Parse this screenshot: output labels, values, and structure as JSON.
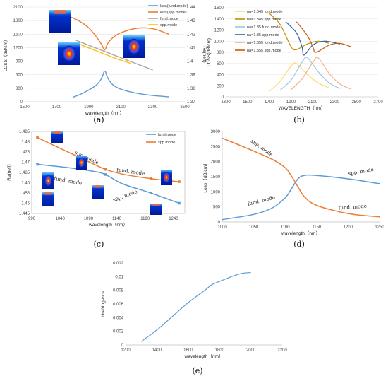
{
  "chart_data": [
    {
      "id": "a",
      "type": "line",
      "panel_label": "(a)",
      "xlabel": "wavelength（nm）",
      "ylabel": "LOSS（dB/cm）",
      "y2label": "Re(neff)",
      "xlim": [
        1500,
        2500
      ],
      "ylim": [
        0,
        2100
      ],
      "y2lim": [
        1.37,
        1.44
      ],
      "xticks": [
        "1500",
        "1700",
        "1900",
        "2100",
        "2300",
        "2500"
      ],
      "yticks": [
        "0",
        "300",
        "600",
        "900",
        "1200",
        "1500",
        "1800",
        "2100"
      ],
      "y2ticks": [
        "1.37",
        "1.38",
        "1.39",
        "1.4",
        "1.41",
        "1.42",
        "1.43",
        "1.44"
      ],
      "legend_position": "top-right",
      "colors": {
        "loss_fund": "#5b9bd5",
        "loss_spp": "#ed7d31",
        "re_fund": "#a5a5a5",
        "re_spp": "#ffc000"
      },
      "series": [
        {
          "name": "loss(fund.mode)",
          "axis": "left",
          "color": "#5b9bd5",
          "x": [
            1800,
            1850,
            1900,
            1950,
            1980,
            2000,
            2020,
            2050,
            2100,
            2200,
            2300,
            2400
          ],
          "y": [
            100,
            170,
            260,
            380,
            520,
            680,
            520,
            380,
            280,
            190,
            140,
            110
          ]
        },
        {
          "name": "loss(spp.mode)",
          "axis": "left",
          "color": "#ed7d31",
          "x": [
            1700,
            1750,
            1800,
            1850,
            1900,
            1950,
            1980,
            2000,
            2020,
            2050,
            2100,
            2200,
            2300,
            2400
          ],
          "y": [
            1960,
            1920,
            1860,
            1770,
            1640,
            1430,
            1270,
            1150,
            1300,
            1420,
            1530,
            1630,
            1620,
            1500
          ]
        },
        {
          "name": "fund.mode",
          "axis": "right",
          "color": "#a5a5a5",
          "x": [
            1820,
            1900,
            2000,
            2100,
            2200,
            2300
          ],
          "y": [
            1.4155,
            1.4118,
            1.4072,
            1.4026,
            1.398,
            1.3935
          ]
        },
        {
          "name": "spp.mode",
          "axis": "right",
          "color": "#ffc000",
          "x": [
            1820,
            1900,
            2000,
            2080,
            2160
          ],
          "y": [
            1.4135,
            1.4098,
            1.4052,
            1.4015,
            1.3985
          ]
        }
      ]
    },
    {
      "id": "b",
      "type": "line",
      "panel_label": "(b)",
      "xlabel": "WAVELENGTH（nm）",
      "ylabel": "LOSS(dB/cm)",
      "xlim": [
        1300,
        2700
      ],
      "ylim": [
        0,
        1600
      ],
      "xticks": [
        "1300",
        "1500",
        "1700",
        "1900",
        "2100",
        "2300",
        "2500",
        "2700"
      ],
      "yticks": [
        "0",
        "200",
        "400",
        "600",
        "800",
        "1000",
        "1200",
        "1400",
        "1600"
      ],
      "legend_position": "top-left",
      "series": [
        {
          "name": "na=1.345 fund.mode",
          "color": "#ffd966",
          "x": [
            1700,
            1800,
            1900,
            1950,
            2050,
            2150,
            2250
          ],
          "y": [
            100,
            280,
            550,
            600,
            400,
            250,
            160
          ]
        },
        {
          "name": "na=1.345 spp.mode",
          "color": "#bf9000",
          "x": [
            1700,
            1800,
            1900,
            1950,
            2050,
            2150,
            2250
          ],
          "y": [
            1500,
            1300,
            900,
            850,
            950,
            1000,
            960
          ]
        },
        {
          "name": "na=1.35 fund.mode",
          "color": "#9dc3e6",
          "x": [
            1800,
            1900,
            2000,
            2050,
            2150,
            2250,
            2350
          ],
          "y": [
            120,
            300,
            620,
            700,
            450,
            250,
            150
          ]
        },
        {
          "name": "na=1.35 spp.mode",
          "color": "#2e5ea8",
          "x": [
            1850,
            1950,
            2000,
            2020,
            2100,
            2200,
            2350
          ],
          "y": [
            1350,
            1150,
            900,
            750,
            930,
            1000,
            950
          ]
        },
        {
          "name": "na=1.355 fund.mode",
          "color": "#f4b183",
          "x": [
            1900,
            2000,
            2100,
            2150,
            2250,
            2350,
            2450
          ],
          "y": [
            130,
            320,
            620,
            700,
            420,
            230,
            140
          ]
        },
        {
          "name": "na=1.355 spp.mode",
          "color": "#c55a11",
          "x": [
            1950,
            2050,
            2100,
            2130,
            2250,
            2350,
            2450
          ],
          "y": [
            1350,
            1100,
            900,
            800,
            930,
            960,
            900
          ]
        }
      ]
    },
    {
      "id": "c",
      "type": "line",
      "panel_label": "(c)",
      "xlabel": "wavelength（nm）",
      "ylabel": "Re(neff)",
      "xlim": [
        990,
        1260
      ],
      "ylim": [
        1.445,
        1.485
      ],
      "xticks": [
        "990",
        "1040",
        "1090",
        "1140",
        "1190",
        "1240"
      ],
      "yticks": [
        "1.445",
        "1.45",
        "1.455",
        "1.46",
        "1.465",
        "1.47",
        "1.475",
        "1.48",
        "1.485"
      ],
      "legend_position": "top-right",
      "annotations": [
        "spp. mode",
        "fund. mode",
        "fund. mode",
        "spp. mode"
      ],
      "series": [
        {
          "name": "fund.mode",
          "color": "#5b9bd5",
          "x": [
            1000,
            1050,
            1100,
            1120,
            1150,
            1200,
            1250
          ],
          "y": [
            1.469,
            1.4675,
            1.4655,
            1.464,
            1.4595,
            1.455,
            1.45
          ]
        },
        {
          "name": "spp.mode",
          "color": "#ed7d31",
          "x": [
            1000,
            1050,
            1100,
            1120,
            1150,
            1200,
            1250
          ],
          "y": [
            1.482,
            1.4755,
            1.469,
            1.4665,
            1.4642,
            1.462,
            1.4605
          ]
        }
      ]
    },
    {
      "id": "d",
      "type": "line",
      "panel_label": "(d)",
      "xlabel": "wavelength（nm）",
      "ylabel": "Loss（dB/cm）",
      "xlim": [
        1000,
        1250
      ],
      "ylim": [
        0,
        3000
      ],
      "xticks": [
        "1000",
        "1050",
        "1100",
        "1150",
        "1200",
        "1250"
      ],
      "yticks": [
        "0",
        "500",
        "1000",
        "1500",
        "2000",
        "2500",
        "3000"
      ],
      "annotations": [
        "spp. mode",
        "fund. mode",
        "spp. mode",
        "fund. mode"
      ],
      "series": [
        {
          "name": "fund. mode",
          "color": "#5b9bd5",
          "x": [
            1000,
            1050,
            1080,
            1100,
            1110,
            1120,
            1130,
            1150,
            1200,
            1250
          ],
          "y": [
            80,
            250,
            470,
            800,
            1100,
            1420,
            1540,
            1540,
            1430,
            1270
          ]
        },
        {
          "name": "spp. mode",
          "color": "#ed7d31",
          "x": [
            1000,
            1050,
            1080,
            1100,
            1110,
            1120,
            1130,
            1150,
            1200,
            1250
          ],
          "y": [
            2780,
            2350,
            2070,
            1800,
            1520,
            1180,
            850,
            550,
            280,
            170
          ]
        }
      ]
    },
    {
      "id": "e",
      "type": "line",
      "panel_label": "(e)",
      "xlabel": "wavelength（nm）",
      "ylabel": "birefringence",
      "xlim": [
        1200,
        2200
      ],
      "ylim": [
        0,
        0.012
      ],
      "xticks": [
        "1200",
        "1400",
        "1600",
        "1800",
        "2000",
        "2200"
      ],
      "yticks": [
        "0",
        "0.002",
        "0.004",
        "0.006",
        "0.008",
        "0.01",
        "0.012"
      ],
      "series": [
        {
          "color": "#5b9bd5",
          "x": [
            1300,
            1400,
            1500,
            1600,
            1700,
            1750,
            1800,
            1900,
            1950,
            2000
          ],
          "y": [
            0.0005,
            0.0022,
            0.0042,
            0.0062,
            0.0079,
            0.0088,
            0.0093,
            0.0102,
            0.0105,
            0.0106
          ]
        }
      ]
    }
  ]
}
